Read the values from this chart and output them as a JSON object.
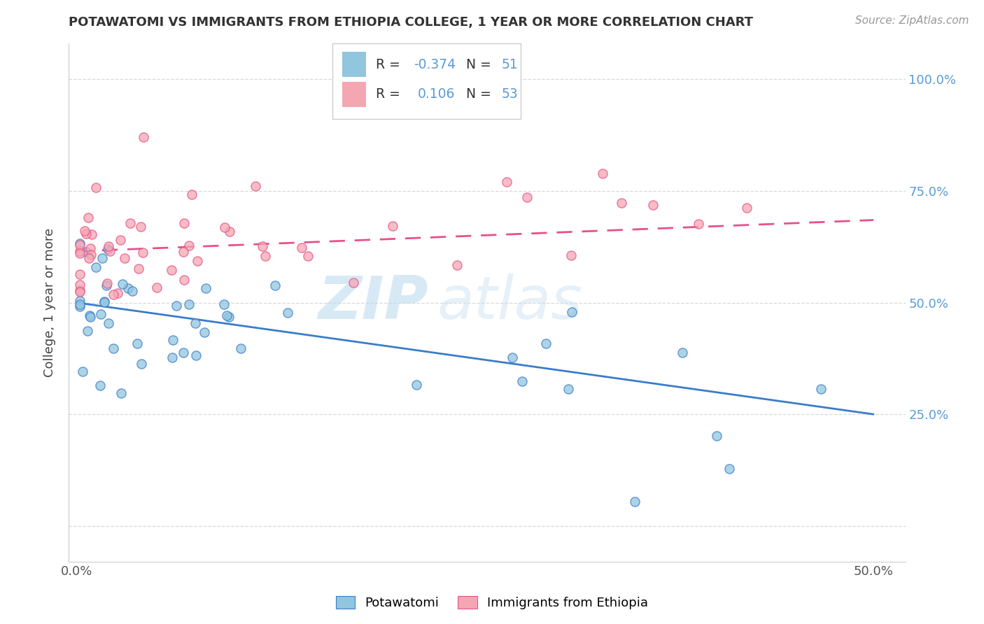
{
  "title": "POTAWATOMI VS IMMIGRANTS FROM ETHIOPIA COLLEGE, 1 YEAR OR MORE CORRELATION CHART",
  "source_text": "Source: ZipAtlas.com",
  "ylabel": "College, 1 year or more",
  "blue_R": -0.374,
  "blue_N": 51,
  "pink_R": 0.106,
  "pink_N": 53,
  "blue_color": "#92c5de",
  "pink_color": "#f4a7b2",
  "blue_line_color": "#3a7dc9",
  "pink_line_color": "#e8508a",
  "watermark_left": "ZIP",
  "watermark_right": "atlas",
  "x_tick_positions": [
    0.0,
    0.1,
    0.2,
    0.3,
    0.4,
    0.5
  ],
  "x_tick_labels": [
    "0.0%",
    "",
    "",
    "",
    "",
    "50.0%"
  ],
  "y_tick_positions": [
    0.0,
    0.25,
    0.5,
    0.75,
    1.0
  ],
  "y_tick_labels_right": [
    "",
    "25.0%",
    "50.0%",
    "75.0%",
    "100.0%"
  ],
  "xlim": [
    -0.005,
    0.52
  ],
  "ylim": [
    -0.08,
    1.08
  ],
  "blue_trend_x0": 0.0,
  "blue_trend_y0": 0.5,
  "blue_trend_x1": 0.5,
  "blue_trend_y1": 0.25,
  "pink_trend_x0": 0.0,
  "pink_trend_y0": 0.615,
  "pink_trend_x1": 0.5,
  "pink_trend_y1": 0.685,
  "bottom_legend": [
    "Potawatomi",
    "Immigrants from Ethiopia"
  ],
  "grid_color": "#d8d8d8",
  "spine_color": "#cccccc",
  "right_tick_color": "#5b9bd5",
  "title_color": "#333333",
  "source_color": "#999999"
}
